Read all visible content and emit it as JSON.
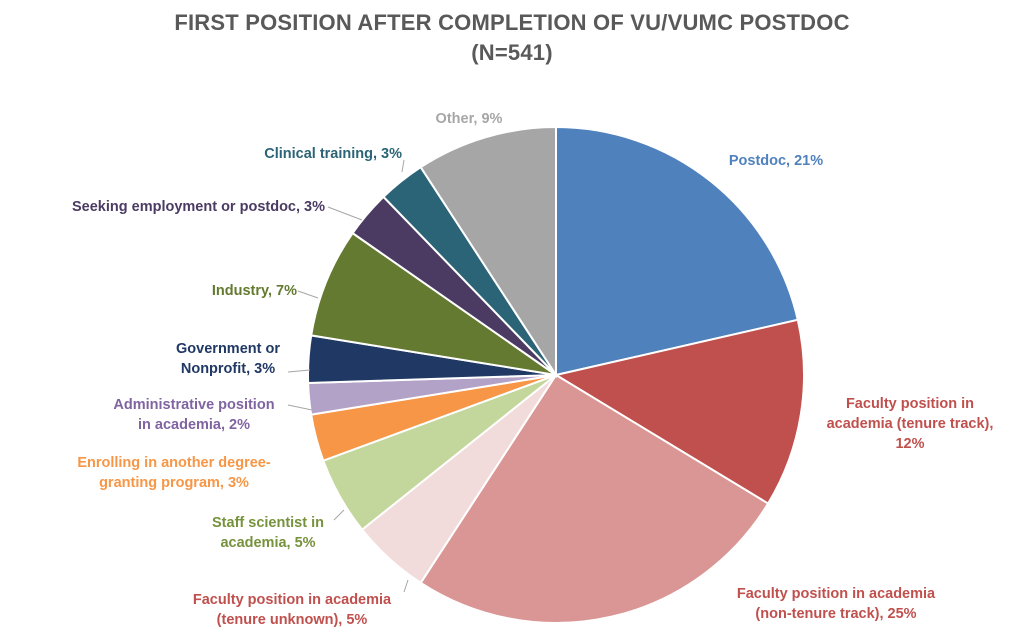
{
  "chart_data": {
    "type": "pie",
    "title": "FIRST POSITION AFTER COMPLETION OF VU/VUMC POSTDOC",
    "subtitle": "(N=541)",
    "start_angle_deg": 0,
    "direction": "clockwise",
    "slices": [
      {
        "label": "Postdoc, 21%",
        "value": 21,
        "color": "#4F81BD"
      },
      {
        "label": "Faculty position in academia (tenure track), 12%",
        "value": 12,
        "color": "#C0504D"
      },
      {
        "label": "Faculty position in academia (non-tenure track), 25%",
        "value": 25,
        "color": "#D99694"
      },
      {
        "label": "Faculty position in academia (tenure unknown), 5%",
        "value": 5,
        "color": "#F2DCDB"
      },
      {
        "label": "Staff scientist in academia, 5%",
        "value": 5,
        "color": "#C3D69B"
      },
      {
        "label": "Enrolling in another degree-granting program, 3%",
        "value": 3,
        "color": "#F79646"
      },
      {
        "label": "Administrative position in academia, 2%",
        "value": 2,
        "color": "#B3A2C7"
      },
      {
        "label": "Government or Nonprofit, 3%",
        "value": 3,
        "color": "#1F3864"
      },
      {
        "label": "Industry, 7%",
        "value": 7,
        "color": "#647A30"
      },
      {
        "label": "Seeking employment or postdoc, 3%",
        "value": 3,
        "color": "#4B3B63"
      },
      {
        "label": "Clinical training, 3%",
        "value": 3,
        "color": "#2B6476"
      },
      {
        "label": "Other, 9%",
        "value": 9,
        "color": "#A6A6A6"
      }
    ],
    "label_colors": {
      "Postdoc": "#4F81BD",
      "Faculty position in academia (tenure track)": "#C0504D",
      "Faculty position in academia (non-tenure track)": "#C0504D",
      "Faculty position in academia (tenure unknown)": "#C0504D",
      "Staff scientist in academia": "#76923C",
      "Enrolling in another degree-granting program": "#F79646",
      "Administrative position in academia": "#8064A2",
      "Government or Nonprofit": "#1F3864",
      "Industry": "#647A30",
      "Seeking employment or postdoc": "#4B3B63",
      "Clinical training": "#2B6476",
      "Other": "#A6A6A6"
    }
  }
}
